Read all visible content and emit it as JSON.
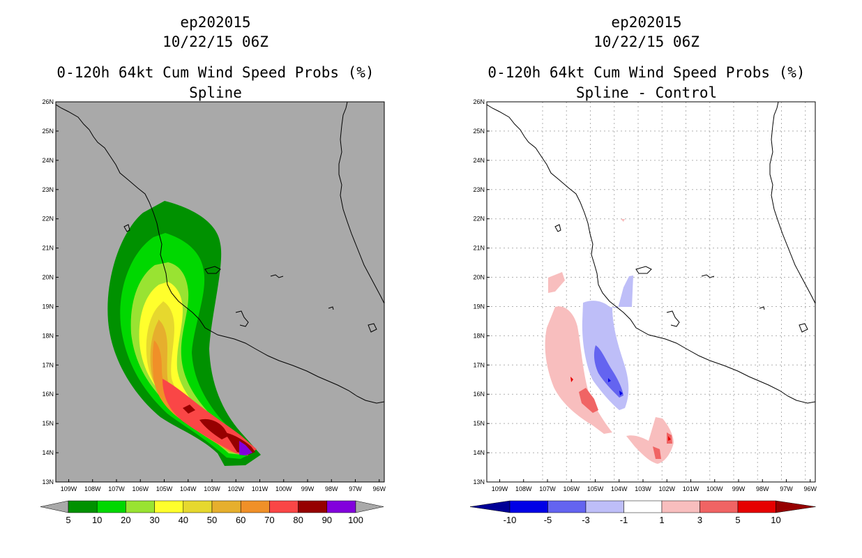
{
  "left_panel": {
    "title_lines": [
      "ep202015",
      "10/22/15 06Z",
      "0-120h 64kt Cum Wind Speed Probs (%)",
      "Spline"
    ],
    "background_color": "#a9a9a9",
    "colorbar": {
      "colors": [
        "#009100",
        "#00d800",
        "#99e332",
        "#ffff2c",
        "#e6d82e",
        "#e6af2d",
        "#f09028",
        "#fa4646",
        "#960000",
        "#8200dc"
      ],
      "labels": [
        "5",
        "10",
        "20",
        "30",
        "40",
        "50",
        "60",
        "70",
        "80",
        "90",
        "100"
      ]
    }
  },
  "right_panel": {
    "title_lines": [
      "ep202015",
      "10/22/15 06Z",
      "0-120h 64kt Cum Wind Speed Probs (%)",
      "Spline - Control"
    ],
    "background_color": "#ffffff",
    "colorbar": {
      "colors": [
        "#0000e6",
        "#6464f0",
        "#bebef8",
        "#ffffff",
        "#f8bebe",
        "#f06464",
        "#e60000"
      ],
      "end_colors": [
        "#000096",
        "#960000"
      ],
      "labels": [
        "-10",
        "-5",
        "-3",
        "-1",
        "1",
        "3",
        "5",
        "10"
      ]
    }
  },
  "axes": {
    "lat_labels": [
      "26N",
      "25N",
      "24N",
      "23N",
      "22N",
      "21N",
      "20N",
      "19N",
      "18N",
      "17N",
      "16N",
      "15N",
      "14N",
      "13N"
    ],
    "lon_labels": [
      "109W",
      "108W",
      "107W",
      "106W",
      "105W",
      "104W",
      "103W",
      "102W",
      "101W",
      "100W",
      "99W",
      "98W",
      "97W",
      "96W"
    ]
  }
}
